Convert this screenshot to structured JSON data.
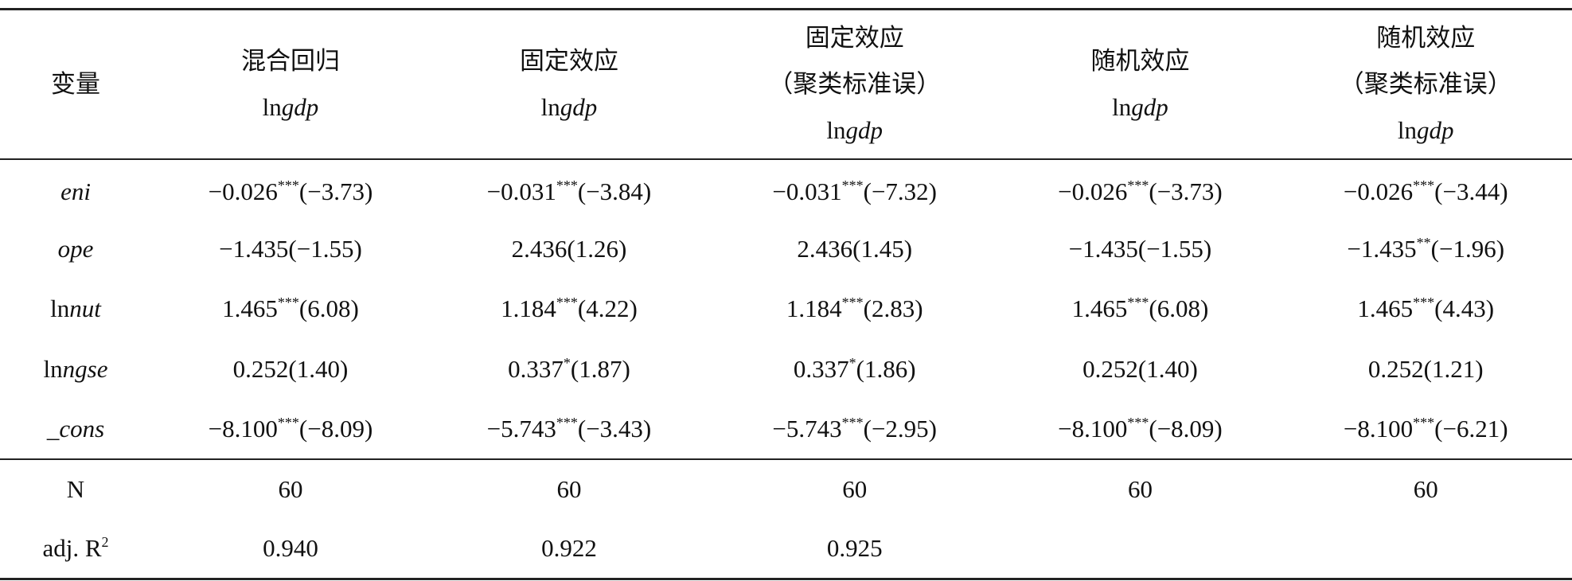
{
  "table": {
    "header": {
      "first": "变量",
      "columns": [
        {
          "title": [
            "混合回归"
          ],
          "dep": {
            "plain": "ln",
            "italic": "gdp"
          }
        },
        {
          "title": [
            "固定效应"
          ],
          "dep": {
            "plain": "ln",
            "italic": "gdp"
          }
        },
        {
          "title": [
            "固定效应",
            "（聚类标准误）"
          ],
          "dep": {
            "plain": "ln",
            "italic": "gdp"
          }
        },
        {
          "title": [
            "随机效应"
          ],
          "dep": {
            "plain": "ln",
            "italic": "gdp"
          }
        },
        {
          "title": [
            "随机效应",
            "（聚类标准误）"
          ],
          "dep": {
            "plain": "ln",
            "italic": "gdp"
          }
        }
      ]
    },
    "rows": [
      {
        "name": {
          "italic": "eni"
        },
        "cells": [
          {
            "coef": "−0.026",
            "stars": "***",
            "t": "(−3.73)"
          },
          {
            "coef": "−0.031",
            "stars": "***",
            "t": "(−3.84)"
          },
          {
            "coef": "−0.031",
            "stars": "***",
            "t": "(−7.32)"
          },
          {
            "coef": "−0.026",
            "stars": "***",
            "t": "(−3.73)"
          },
          {
            "coef": "−0.026",
            "stars": "***",
            "t": "(−3.44)"
          }
        ]
      },
      {
        "name": {
          "italic": "ope"
        },
        "cells": [
          {
            "coef": "−1.435",
            "t": "(−1.55)"
          },
          {
            "coef": "2.436",
            "t": "(1.26)"
          },
          {
            "coef": "2.436",
            "t": "(1.45)"
          },
          {
            "coef": "−1.435",
            "t": "(−1.55)"
          },
          {
            "coef": "−1.435",
            "stars": "**",
            "t": "(−1.96)"
          }
        ]
      },
      {
        "name": {
          "plain": "ln",
          "italic": "nut"
        },
        "cells": [
          {
            "coef": "1.465",
            "stars": "***",
            "t": "(6.08)"
          },
          {
            "coef": "1.184",
            "stars": "***",
            "t": "(4.22)"
          },
          {
            "coef": "1.184",
            "stars": "***",
            "t": "(2.83)"
          },
          {
            "coef": "1.465",
            "stars": "***",
            "t": "(6.08)"
          },
          {
            "coef": "1.465",
            "stars": "***",
            "t": "(4.43)"
          }
        ]
      },
      {
        "name": {
          "plain": "ln",
          "italic": "ngse"
        },
        "cells": [
          {
            "coef": "0.252",
            "t": "(1.40)"
          },
          {
            "coef": "0.337",
            "stars": "*",
            "t": "(1.87)"
          },
          {
            "coef": "0.337",
            "stars": "*",
            "t": "(1.86)"
          },
          {
            "coef": "0.252",
            "t": "(1.40)"
          },
          {
            "coef": "0.252",
            "t": "(1.21)"
          }
        ]
      },
      {
        "name": {
          "italic": "_cons"
        },
        "cells": [
          {
            "coef": "−8.100",
            "stars": "***",
            "t": "(−8.09)"
          },
          {
            "coef": "−5.743",
            "stars": "***",
            "t": "(−3.43)"
          },
          {
            "coef": "−5.743",
            "stars": "***",
            "t": "(−2.95)"
          },
          {
            "coef": "−8.100",
            "stars": "***",
            "t": "(−8.09)"
          },
          {
            "coef": "−8.100",
            "stars": "***",
            "t": "(−6.21)"
          }
        ]
      }
    ],
    "stats": [
      {
        "name": {
          "plain": "N"
        },
        "values": [
          "60",
          "60",
          "60",
          "60",
          "60"
        ]
      },
      {
        "name": {
          "plain": "adj. R",
          "sup": "2"
        },
        "values": [
          "0.940",
          "0.922",
          "0.925",
          null,
          null
        ]
      }
    ]
  }
}
